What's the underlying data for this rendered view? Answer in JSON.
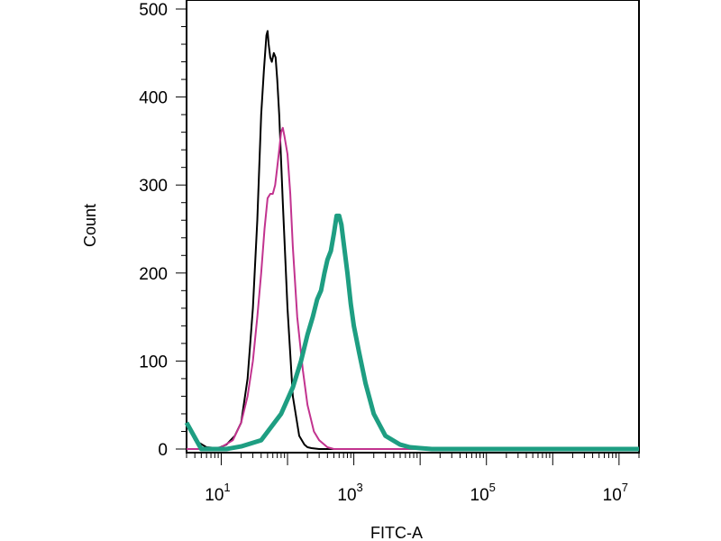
{
  "chart_data": {
    "type": "line",
    "title": "",
    "xlabel": "FITC-A",
    "ylabel": "Count",
    "x_scale": "log",
    "xlim": [
      3,
      20000000
    ],
    "ylim": [
      0,
      500
    ],
    "grid": false,
    "legend": "none",
    "y_ticks": [
      {
        "value": 0,
        "label": "0"
      },
      {
        "value": 100,
        "label": "100"
      },
      {
        "value": 200,
        "label": "200"
      },
      {
        "value": 300,
        "label": "300"
      },
      {
        "value": 400,
        "label": "400"
      },
      {
        "value": 500,
        "label": "500"
      }
    ],
    "x_ticks": [
      {
        "value": 10,
        "base": "10",
        "exp": "1"
      },
      {
        "value": 1000,
        "base": "10",
        "exp": "3"
      },
      {
        "value": 100000,
        "base": "10",
        "exp": "5"
      },
      {
        "value": 10000000,
        "base": "10",
        "exp": "7"
      }
    ],
    "series": [
      {
        "color": "#000000",
        "stroke": 2,
        "x": [
          3,
          4,
          6,
          9,
          12,
          16,
          20,
          25,
          30,
          35,
          40,
          44,
          48,
          50,
          52,
          55,
          58,
          62,
          66,
          70,
          75,
          85,
          100,
          120,
          150,
          180,
          200,
          230,
          300,
          10000000
        ],
        "y": [
          30,
          10,
          2,
          1,
          5,
          15,
          30,
          80,
          160,
          260,
          380,
          430,
          470,
          475,
          460,
          445,
          440,
          450,
          445,
          420,
          380,
          280,
          160,
          60,
          15,
          5,
          2,
          1,
          0,
          0
        ]
      },
      {
        "color": "#c2338f",
        "stroke": 2,
        "x": [
          3,
          6,
          10,
          15,
          20,
          25,
          30,
          35,
          40,
          45,
          50,
          55,
          60,
          65,
          70,
          75,
          80,
          85,
          90,
          100,
          110,
          120,
          140,
          170,
          200,
          250,
          300,
          400,
          500,
          10000000
        ],
        "y": [
          0,
          0,
          2,
          10,
          30,
          60,
          100,
          150,
          200,
          250,
          285,
          290,
          290,
          300,
          320,
          340,
          360,
          365,
          355,
          335,
          290,
          230,
          150,
          90,
          50,
          20,
          10,
          2,
          0,
          0
        ]
      },
      {
        "color": "#1e9e82",
        "stroke": 5,
        "x": [
          3,
          5,
          8,
          12,
          20,
          40,
          80,
          120,
          160,
          200,
          240,
          280,
          320,
          360,
          400,
          450,
          500,
          550,
          600,
          650,
          700,
          800,
          900,
          1000,
          1200,
          1500,
          2000,
          3000,
          5000,
          7000,
          10000,
          15000,
          20000000
        ],
        "y": [
          30,
          0,
          0,
          0,
          3,
          10,
          40,
          70,
          100,
          130,
          150,
          170,
          180,
          200,
          215,
          225,
          245,
          265,
          265,
          255,
          235,
          200,
          165,
          140,
          110,
          75,
          40,
          15,
          5,
          2,
          1,
          0,
          0
        ]
      }
    ]
  }
}
